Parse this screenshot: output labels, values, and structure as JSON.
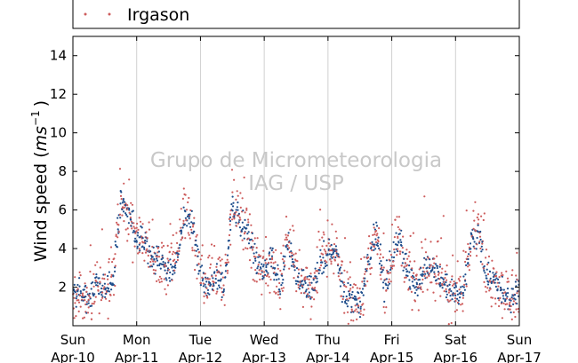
{
  "chart_data": {
    "type": "scatter",
    "title": "",
    "ylabel": "Wind speed (ms⁻¹)",
    "ylabel_main": "Wind speed (",
    "ylabel_unit": "ms",
    "ylabel_exp": "−1",
    "ylabel_close": ")",
    "xlabel": "",
    "ylim": [
      0,
      15
    ],
    "yticks": [
      2,
      4,
      6,
      8,
      10,
      12,
      14
    ],
    "xlim": [
      "2016-04-10 00:00",
      "2016-04-17 00:00"
    ],
    "xticks": [
      {
        "date": "2016-04-10",
        "day": "Sun",
        "label": "Apr-10"
      },
      {
        "date": "2016-04-11",
        "day": "Mon",
        "label": "Apr-11"
      },
      {
        "date": "2016-04-12",
        "day": "Tue",
        "label": "Apr-12"
      },
      {
        "date": "2016-04-13",
        "day": "Wed",
        "label": "Apr-13"
      },
      {
        "date": "2016-04-14",
        "day": "Thu",
        "label": "Apr-14"
      },
      {
        "date": "2016-04-15",
        "day": "Fri",
        "label": "Apr-15"
      },
      {
        "date": "2016-04-16",
        "day": "Sat",
        "label": "Apr-16"
      },
      {
        "date": "2016-04-17",
        "day": "Sun",
        "label": "Apr-17"
      }
    ],
    "grid": "vertical",
    "legend": {
      "placement": "top",
      "entries": [
        "Irgason"
      ]
    },
    "watermark": [
      "Grupo de Micrometeorologia",
      "IAG / USP"
    ],
    "series": [
      {
        "name": "Irgason",
        "color": "#cd5c5c",
        "secondary_color": "#1f4e8c",
        "x_unit": "hours since 2016-04-10 00:00",
        "x": [
          0,
          3,
          6,
          9,
          12,
          15,
          18,
          21,
          24,
          27,
          30,
          33,
          36,
          39,
          42,
          45,
          48,
          51,
          54,
          57,
          60,
          63,
          66,
          69,
          72,
          75,
          78,
          81,
          84,
          87,
          90,
          93,
          96,
          99,
          102,
          105,
          108,
          111,
          114,
          117,
          120,
          123,
          126,
          129,
          132,
          135,
          138,
          141,
          144,
          147,
          150,
          153,
          156,
          159,
          162,
          165,
          168
        ],
        "y": [
          1.6,
          1.7,
          1.3,
          2.2,
          1.6,
          2.5,
          6.5,
          5.8,
          4.6,
          4.3,
          3.6,
          3.3,
          2.8,
          3.5,
          5.8,
          5.3,
          2.4,
          2.0,
          2.5,
          2.2,
          6.3,
          5.5,
          4.8,
          3.2,
          2.8,
          3.6,
          1.8,
          4.6,
          2.8,
          2.2,
          1.8,
          3.3,
          3.7,
          4.0,
          1.6,
          1.4,
          1.0,
          3.2,
          4.8,
          2.0,
          3.5,
          4.6,
          2.6,
          2.3,
          3.0,
          3.2,
          2.4,
          2.1,
          1.6,
          1.8,
          4.5,
          4.6,
          2.4,
          2.2,
          1.6,
          1.5,
          2.0
        ]
      }
    ]
  }
}
